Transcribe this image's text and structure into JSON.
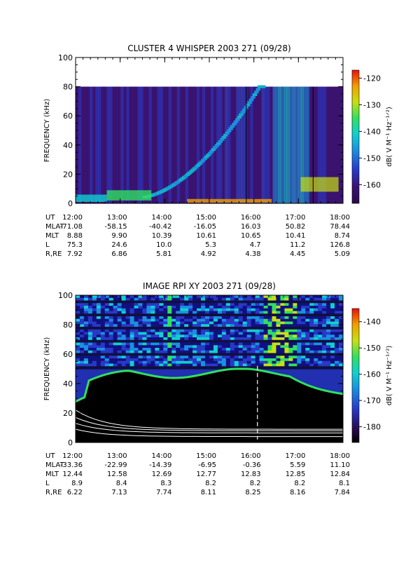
{
  "chart_data": [
    {
      "type": "heatmap",
      "title": "CLUSTER 4 WHISPER 2003 271 (09/28)",
      "ylabel": "FREQUENCY (kHz)",
      "xlabel": "",
      "x_ticks": [
        "12:00",
        "13:00",
        "14:00",
        "15:00",
        "16:00",
        "17:00",
        "18:00"
      ],
      "x_range_hours": [
        12,
        18
      ],
      "ylim": [
        0,
        100
      ],
      "y_ticks": [
        "0",
        "20",
        "40",
        "60",
        "80",
        "100"
      ],
      "data_top_khz": 80,
      "colorbar": {
        "label": "dB( V M⁻¹ Hz⁻¹ᐟ²)",
        "range": [
          -167,
          -117
        ],
        "ticks": [
          "-120",
          "-130",
          "-140",
          "-150",
          "-160"
        ]
      },
      "ephemeris": [
        {
          "label": "UT",
          "values": [
            "12:00",
            "13:00",
            "14:00",
            "15:00",
            "16:00",
            "17:00",
            "18:00"
          ]
        },
        {
          "label": "MLAT",
          "values": [
            "-71.08",
            "-58.15",
            "-40.42",
            "-16.05",
            "16.03",
            "50.82",
            "78.44"
          ]
        },
        {
          "label": "MLT",
          "values": [
            "8.88",
            "9.90",
            "10.39",
            "10.61",
            "10.65",
            "10.41",
            "8.74"
          ]
        },
        {
          "label": "L",
          "values": [
            "75.3",
            "24.6",
            "10.0",
            "5.3",
            "4.7",
            "11.2",
            "126.8"
          ]
        },
        {
          "label": "R,RE",
          "values": [
            "7.92",
            "6.86",
            "5.81",
            "4.92",
            "4.38",
            "4.45",
            "5.09"
          ]
        }
      ]
    },
    {
      "type": "heatmap",
      "title": "IMAGE RPI XY 2003 271 (09/28)",
      "ylabel": "FREQUENCY (kHz)",
      "xlabel": "",
      "x_ticks": [
        "12:00",
        "13:00",
        "14:00",
        "15:00",
        "16:00",
        "17:00",
        "18:00"
      ],
      "x_range_hours": [
        12,
        18
      ],
      "ylim": [
        0,
        100
      ],
      "y_ticks": [
        "0",
        "20",
        "40",
        "60",
        "80",
        "100"
      ],
      "colorbar": {
        "label": "dB( V M⁻¹ Hz⁻¹ᐟ²)",
        "range": [
          -186,
          -135
        ],
        "ticks": [
          "-140",
          "-150",
          "-160",
          "-170",
          "-180"
        ]
      },
      "ephemeris": [
        {
          "label": "UT",
          "values": [
            "12:00",
            "13:00",
            "14:00",
            "15:00",
            "16:00",
            "17:00",
            "18:00"
          ]
        },
        {
          "label": "MLAT",
          "values": [
            "-33.36",
            "-22.99",
            "-14.39",
            "-6.95",
            "-0.36",
            "5.59",
            "11.10"
          ]
        },
        {
          "label": "MLT",
          "values": [
            "12.44",
            "12.58",
            "12.69",
            "12.77",
            "12.83",
            "12.85",
            "12.84"
          ]
        },
        {
          "label": "L",
          "values": [
            "8.9",
            "8.4",
            "8.3",
            "8.2",
            "8.2",
            "8.2",
            "8.1"
          ]
        },
        {
          "label": "R,RE",
          "values": [
            "6.22",
            "7.13",
            "7.74",
            "8.11",
            "8.25",
            "8.16",
            "7.84"
          ]
        }
      ]
    }
  ]
}
